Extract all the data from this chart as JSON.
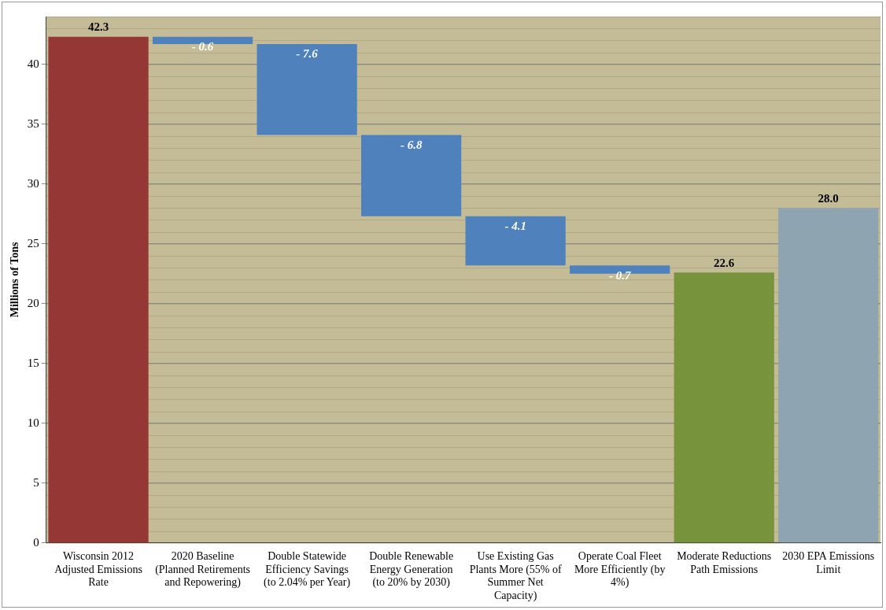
{
  "chart_data": {
    "type": "bar",
    "ylabel": "Millions of Tons",
    "categories": [
      "Wisconsin 2012 Adjusted Emissions Rate",
      "2020 Baseline (Planned Retirements and Repowering)",
      "Double Statewide Efficiency Savings (to 2.04% per Year)",
      "Double Renewable Energy Generation (to 20% by 2030)",
      "Use Existing Gas Plants More (55% of Summer Net Capacity)",
      "Operate Coal Fleet More Efficiently (by 4%)",
      "Moderate Reductions Path Emissions",
      "2030 EPA Emissions Limit"
    ],
    "values": [
      42.3,
      -0.6,
      -7.6,
      -6.8,
      -4.1,
      -0.7,
      22.6,
      28.0
    ],
    "base": [
      0,
      42.3,
      41.7,
      34.1,
      27.3,
      23.2,
      0,
      0
    ],
    "colors": [
      "#953735",
      "#4f81bd",
      "#4f81bd",
      "#4f81bd",
      "#4f81bd",
      "#4f81bd",
      "#77933c",
      "#8ea4b0"
    ],
    "value_labels": [
      "42.3",
      "- 0.6",
      "- 7.6",
      "- 6.8",
      "- 4.1",
      "- 0.7",
      "22.6",
      "28.0"
    ],
    "ylim": [
      0,
      44
    ],
    "yticks": [
      0,
      5,
      10,
      15,
      20,
      25,
      30,
      35,
      40
    ],
    "grid": "y"
  }
}
